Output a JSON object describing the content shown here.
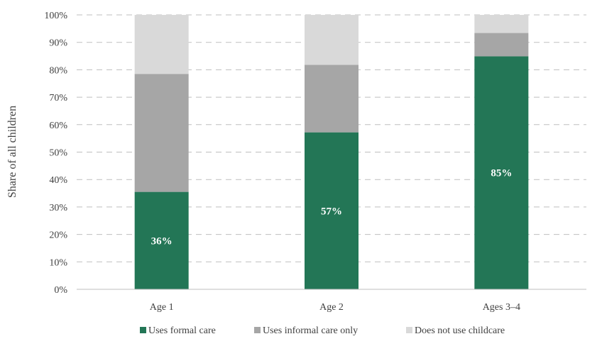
{
  "chart_data": {
    "type": "bar",
    "stacked": true,
    "categories": [
      "Age 1",
      "Age 2",
      "Ages 3–4"
    ],
    "series": [
      {
        "name": "Uses formal care",
        "values": [
          35.5,
          57.2,
          84.9
        ],
        "color": "#237656"
      },
      {
        "name": "Uses informal care only",
        "values": [
          43.0,
          24.6,
          8.5
        ],
        "color": "#a6a6a6"
      },
      {
        "name": "Does not use childcare",
        "values": [
          21.5,
          18.2,
          6.6
        ],
        "color": "#d9d9d9"
      }
    ],
    "data_labels": [
      "36%",
      "57%",
      "85%"
    ],
    "ylabel": "Share of all children",
    "ylim": [
      0,
      100
    ],
    "yticks": [
      "0%",
      "10%",
      "20%",
      "30%",
      "40%",
      "50%",
      "60%",
      "70%",
      "80%",
      "90%",
      "100%"
    ],
    "grid": true,
    "legend_position": "bottom"
  }
}
